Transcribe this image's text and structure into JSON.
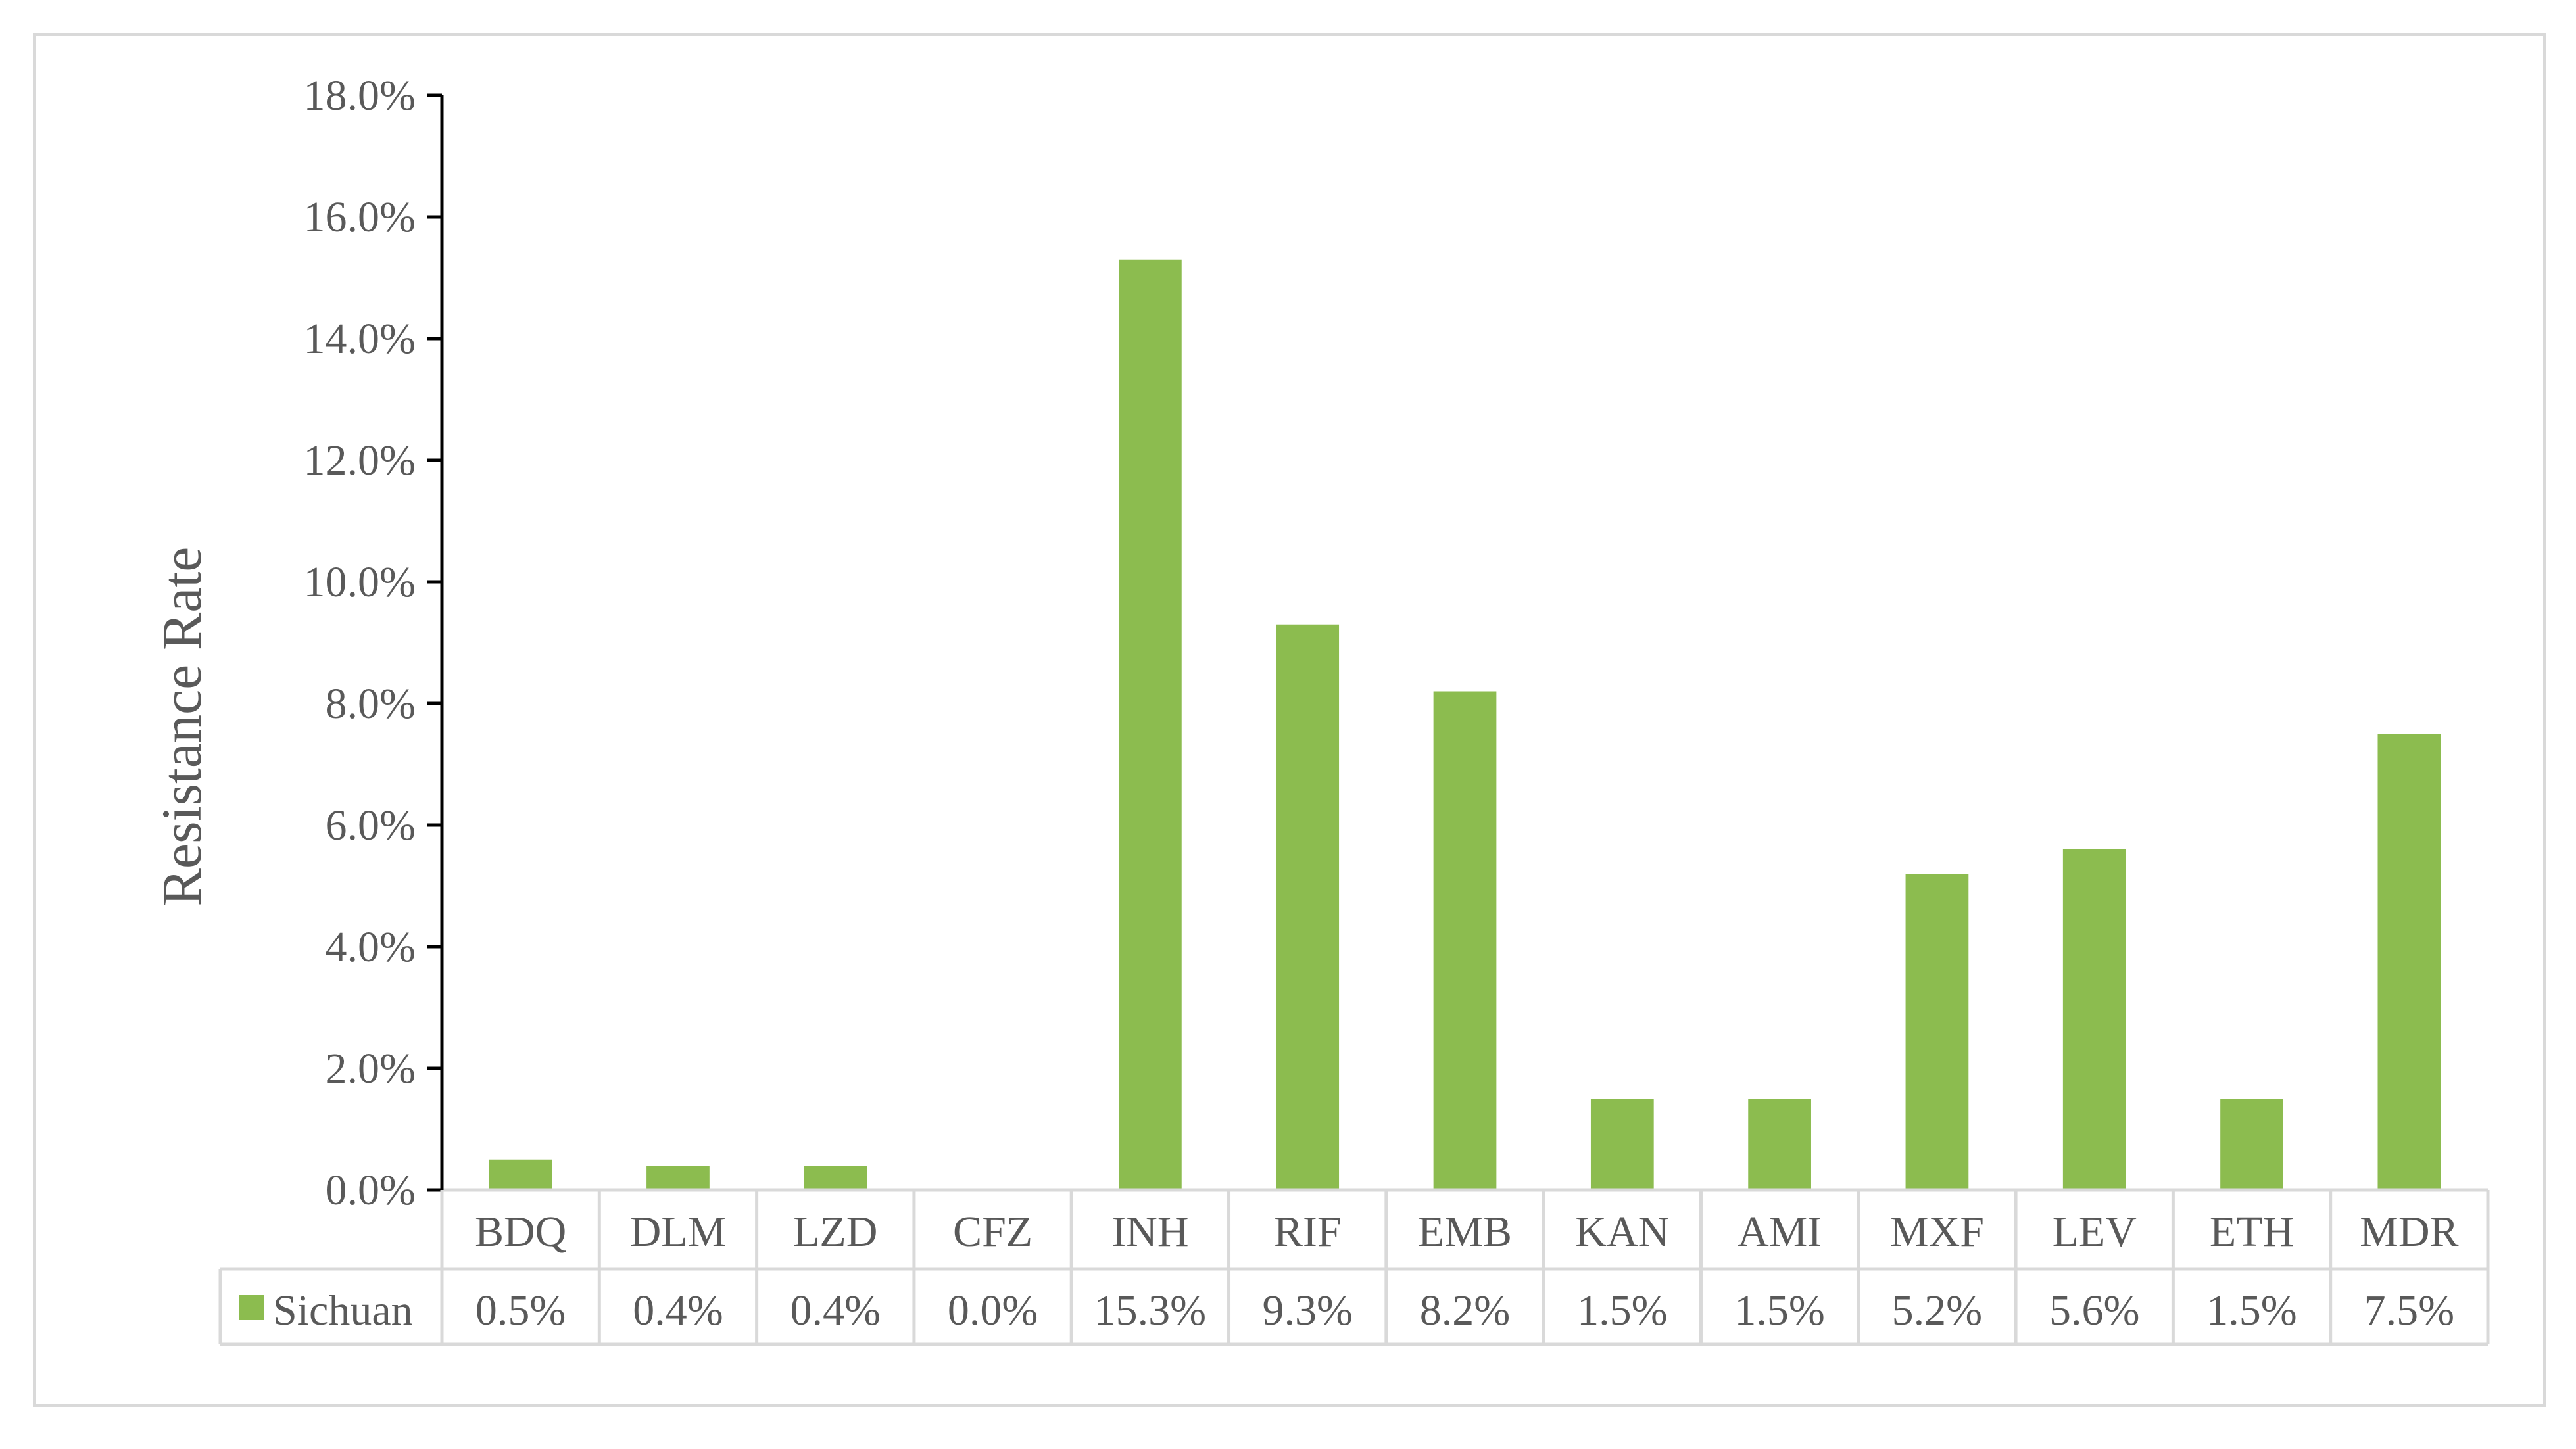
{
  "chart_data": {
    "type": "bar",
    "title": "",
    "xlabel": "",
    "ylabel": "Resistance Rate",
    "ylim": [
      0,
      18
    ],
    "y_tick_step": 2,
    "y_tick_format": "percent_1dp",
    "grid": false,
    "data_table": true,
    "categories": [
      "BDQ",
      "DLM",
      "LZD",
      "CFZ",
      "INH",
      "RIF",
      "EMB",
      "KAN",
      "AMI",
      "MXF",
      "LEV",
      "ETH",
      "MDR"
    ],
    "series": [
      {
        "name": "Sichuan",
        "color": "#8cbc4f",
        "values": [
          0.5,
          0.4,
          0.4,
          0.0,
          15.3,
          9.3,
          8.2,
          1.5,
          1.5,
          5.2,
          5.6,
          1.5,
          7.5
        ],
        "labels": [
          "0.5%",
          "0.4%",
          "0.4%",
          "0.0%",
          "15.3%",
          "9.3%",
          "8.2%",
          "1.5%",
          "1.5%",
          "5.2%",
          "5.6%",
          "1.5%",
          "7.5%"
        ]
      }
    ],
    "colors": {
      "axis": "#000000",
      "table_border": "#d9d9d9",
      "frame": "#d9d9d9",
      "text": "#595959"
    }
  }
}
